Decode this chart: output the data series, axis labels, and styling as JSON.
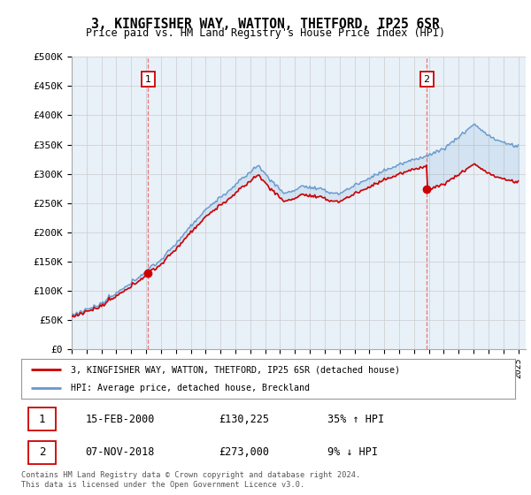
{
  "title": "3, KINGFISHER WAY, WATTON, THETFORD, IP25 6SR",
  "subtitle": "Price paid vs. HM Land Registry's House Price Index (HPI)",
  "ylabel_ticks": [
    "£0",
    "£50K",
    "£100K",
    "£150K",
    "£200K",
    "£250K",
    "£300K",
    "£350K",
    "£400K",
    "£450K",
    "£500K"
  ],
  "ytick_values": [
    0,
    50000,
    100000,
    150000,
    200000,
    250000,
    300000,
    350000,
    400000,
    450000,
    500000
  ],
  "ylim": [
    0,
    500000
  ],
  "hpi_color": "#6699cc",
  "price_color": "#cc0000",
  "dashed_color": "#ee6666",
  "annotation1_date": "15-FEB-2000",
  "annotation1_price": "£130,225",
  "annotation1_hpi": "35% ↑ HPI",
  "annotation2_date": "07-NOV-2018",
  "annotation2_price": "£273,000",
  "annotation2_hpi": "9% ↓ HPI",
  "legend_label1": "3, KINGFISHER WAY, WATTON, THETFORD, IP25 6SR (detached house)",
  "legend_label2": "HPI: Average price, detached house, Breckland",
  "footer": "Contains HM Land Registry data © Crown copyright and database right 2024.\nThis data is licensed under the Open Government Licence v3.0.",
  "background_color": "#ffffff",
  "plot_bg_color": "#e8f0f8",
  "grid_color": "#cccccc"
}
